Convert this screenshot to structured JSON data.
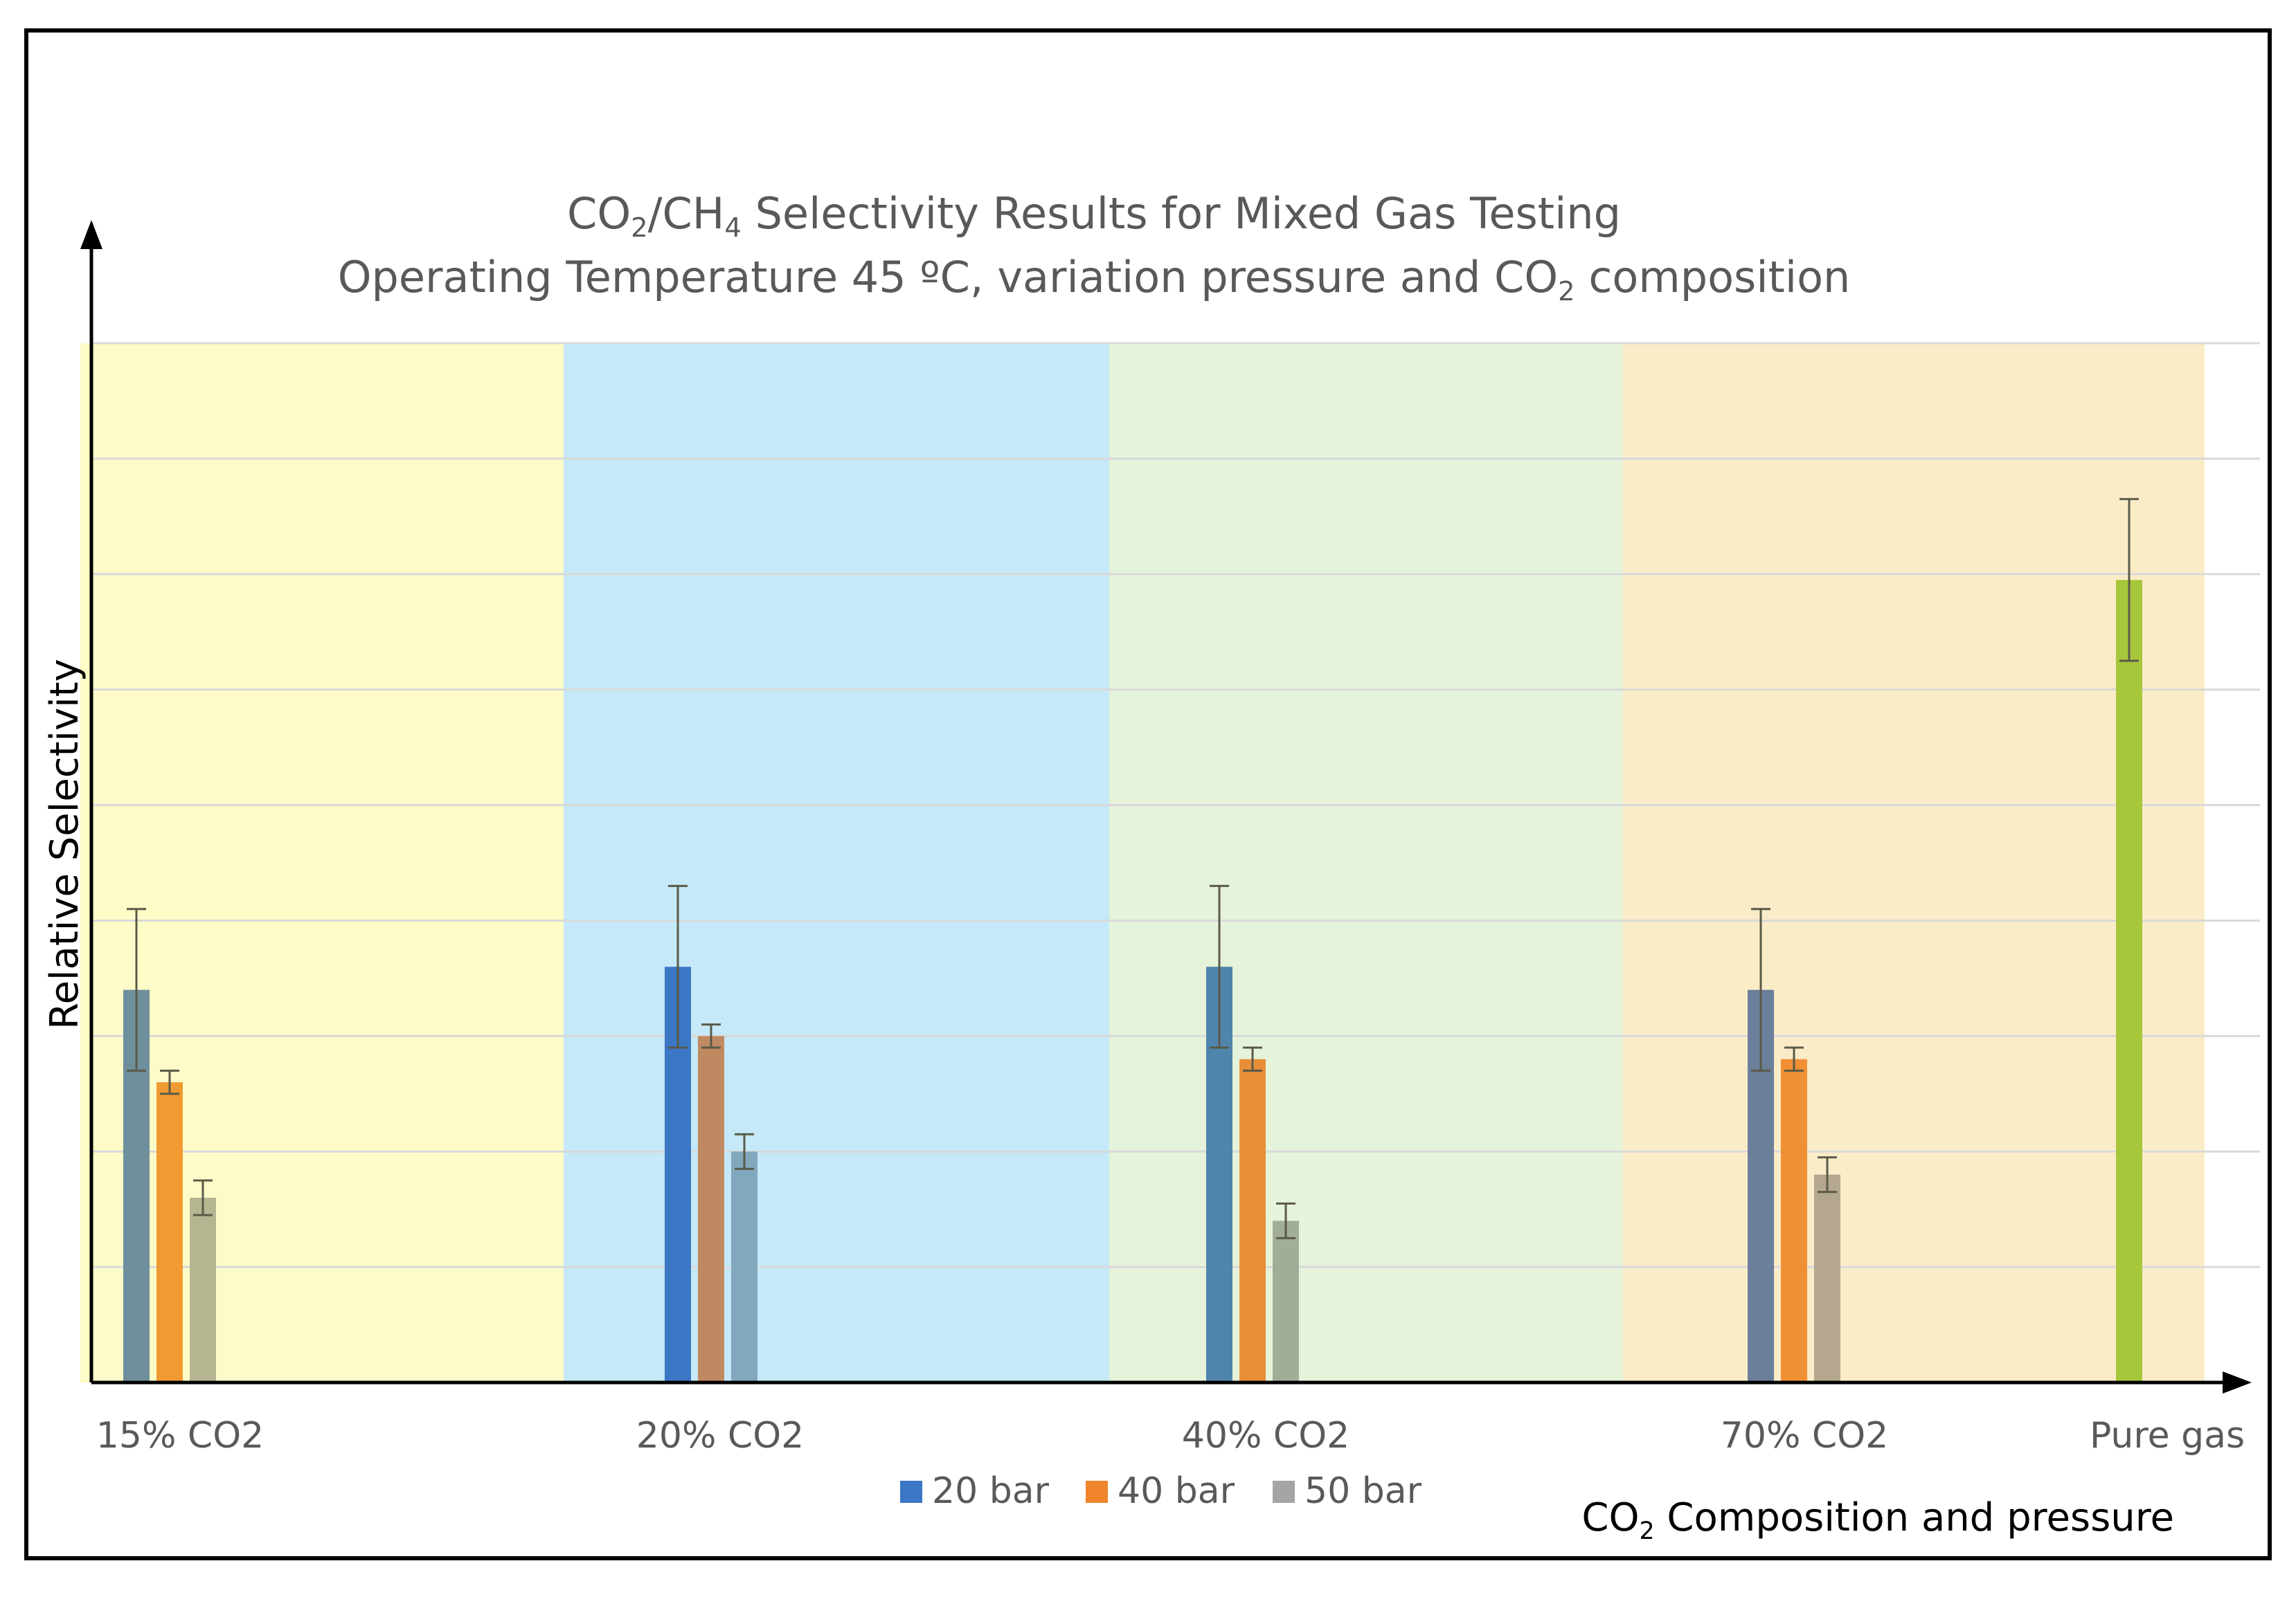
{
  "chart_data": {
    "type": "bar",
    "title_lines": [
      {
        "parts": [
          {
            "text": "CO",
            "sub": false
          },
          {
            "text": "2",
            "sub": true
          },
          {
            "text": "/CH",
            "sub": false
          },
          {
            "text": "4",
            "sub": true
          },
          {
            "text": " Selectivity Results for Mixed Gas Testing",
            "sub": false
          }
        ]
      },
      {
        "parts": [
          {
            "text": "Operating Temperature 45 ºC, variation pressure and CO",
            "sub": false
          },
          {
            "text": "2",
            "sub": true
          },
          {
            "text": " composition",
            "sub": false
          }
        ]
      }
    ],
    "ylabel": "Relative Selectivity",
    "xlabel_parts": [
      {
        "text": "CO",
        "sub": false
      },
      {
        "text": "2",
        "sub": true
      },
      {
        "text": " Composition and pressure",
        "sub": false
      }
    ],
    "ylim": [
      0,
      9
    ],
    "gridlines": [
      1,
      2,
      3,
      4,
      5,
      6,
      7,
      8,
      9
    ],
    "y_tick_labels_shown": false,
    "groups": [
      {
        "label": "15% CO2",
        "band_color": "#fdfcc8",
        "bars": [
          {
            "series": "20 bar",
            "value": 3.4,
            "error": 0.7,
            "color": "#6f8f9c"
          },
          {
            "series": "40 bar",
            "value": 2.6,
            "error": 0.1,
            "color": "#f09a32"
          },
          {
            "series": "50 bar",
            "value": 1.6,
            "error": 0.15,
            "color": "#b5b592"
          }
        ]
      },
      {
        "label": "20% CO2",
        "band_color": "#c5e9f8",
        "bars": [
          {
            "series": "20 bar",
            "value": 3.6,
            "error": 0.7,
            "color": "#3b77c5"
          },
          {
            "series": "40 bar",
            "value": 3.0,
            "error": 0.1,
            "color": "#bf8a62"
          },
          {
            "series": "50 bar",
            "value": 2.0,
            "error": 0.15,
            "color": "#82a8bd"
          }
        ]
      },
      {
        "label": "40% CO2",
        "band_color": "#e6f3db",
        "bars": [
          {
            "series": "20 bar",
            "value": 3.6,
            "error": 0.7,
            "color": "#4f84ab"
          },
          {
            "series": "40 bar",
            "value": 2.8,
            "error": 0.1,
            "color": "#e78e37"
          },
          {
            "series": "50 bar",
            "value": 1.4,
            "error": 0.15,
            "color": "#a2ad98"
          }
        ]
      },
      {
        "label": "70% CO2",
        "band_color": "#fbecc8",
        "bars": [
          {
            "series": "20 bar",
            "value": 3.4,
            "error": 0.7,
            "color": "#6b7f9a"
          },
          {
            "series": "40 bar",
            "value": 2.8,
            "error": 0.1,
            "color": "#f09035"
          },
          {
            "series": "50 bar",
            "value": 1.8,
            "error": 0.15,
            "color": "#b4a78d"
          }
        ]
      },
      {
        "label": "Pure gas",
        "band_color": "#fbecc8",
        "bars": [
          {
            "series": "Pure gas",
            "value": 6.95,
            "error": 0.7,
            "color": "#a6c73a"
          }
        ]
      }
    ],
    "legend": [
      {
        "label": "20 bar",
        "color": "#3b77c5"
      },
      {
        "label": "40 bar",
        "color": "#f0852d"
      },
      {
        "label": "50 bar",
        "color": "#a5a5a5"
      }
    ],
    "legend_position": "bottom-center"
  }
}
